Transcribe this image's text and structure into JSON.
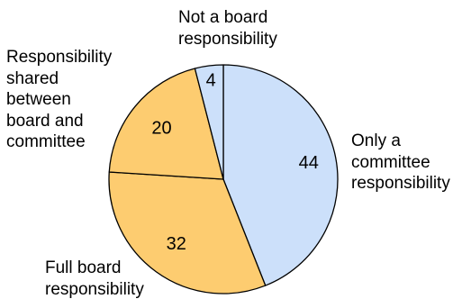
{
  "chart_data": {
    "type": "pie",
    "title": "",
    "slices": [
      {
        "label": "Only a\ncommittee\nresponsibility",
        "value": 44,
        "color": "#cce0fa"
      },
      {
        "label": "Full board\nresponsibility",
        "value": 32,
        "color": "#fdcc70"
      },
      {
        "label": "Responsibility\nshared\nbetween\nboard and\ncommittee",
        "value": 20,
        "color": "#fdcc70"
      },
      {
        "label": "Not a board\nresponsibility",
        "value": 4,
        "color": "#cce0fa"
      }
    ],
    "start": "12 o'clock",
    "direction": "clockwise",
    "legend": "none"
  }
}
